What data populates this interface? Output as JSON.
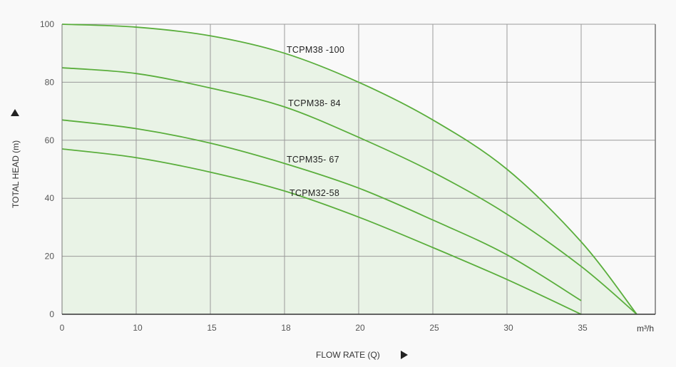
{
  "chart_data": {
    "type": "line",
    "title": "",
    "xlabel": "FLOW RATE (Q)",
    "ylabel": "TOTAL HEAD (m)",
    "x_unit": "m³/h",
    "x_ticks": [
      0,
      10,
      15,
      18,
      20,
      25,
      30,
      35
    ],
    "y_ticks": [
      0,
      20,
      40,
      60,
      80,
      100
    ],
    "ylim": [
      0,
      100
    ],
    "grid": true,
    "colors": {
      "line": "#5aae3c",
      "fill": "#e6f2e3",
      "grid": "#9a9a9a",
      "axis": "#333333"
    },
    "series": [
      {
        "name": "TCPM38 -100",
        "filled": true,
        "x": [
          0,
          10,
          15,
          18,
          20,
          25,
          30,
          35,
          38.75
        ],
        "y": [
          100,
          99,
          96,
          90,
          80,
          67,
          50,
          25,
          0
        ]
      },
      {
        "name": "TCPM38- 84",
        "x": [
          0,
          10,
          15,
          18,
          20,
          25,
          30,
          35,
          38.75
        ],
        "y": [
          85,
          83,
          78,
          71.5,
          61,
          49,
          34.5,
          16.5,
          0
        ]
      },
      {
        "name": "TCPM35- 67",
        "x": [
          0,
          10,
          15,
          18,
          20,
          25,
          30,
          35
        ],
        "y": [
          67,
          64,
          59,
          52,
          43.5,
          32.5,
          20.5,
          4.7
        ]
      },
      {
        "name": "TCPM32-58",
        "x": [
          0,
          10,
          15,
          18,
          20,
          25,
          30,
          35
        ],
        "y": [
          57,
          54,
          49,
          42.5,
          33.5,
          23,
          12,
          0
        ]
      }
    ]
  }
}
